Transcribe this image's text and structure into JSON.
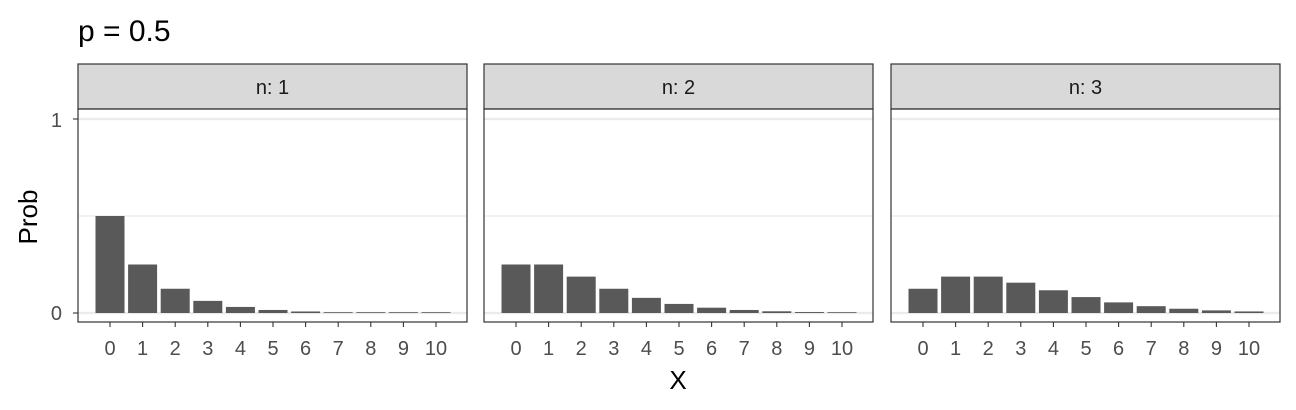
{
  "chart_data": {
    "type": "bar",
    "title": "p = 0.5",
    "xlabel": "X",
    "ylabel": "Prob",
    "ylim": [
      0,
      1
    ],
    "yticks": [
      "0",
      "1"
    ],
    "categories": [
      "0",
      "1",
      "2",
      "3",
      "4",
      "5",
      "6",
      "7",
      "8",
      "9",
      "10"
    ],
    "bar_color": "#595959",
    "strip_fill": "#d9d9d9",
    "grid": true,
    "panels": [
      {
        "label": "n: 1",
        "values": [
          0.5,
          0.25,
          0.125,
          0.0625,
          0.03125,
          0.015625,
          0.0078125,
          0.00390625,
          0.001953125,
          0.0009765625,
          0.00048828125
        ]
      },
      {
        "label": "n: 2",
        "values": [
          0.25,
          0.25,
          0.1875,
          0.125,
          0.078125,
          0.046875,
          0.02734375,
          0.015625,
          0.0087890625,
          0.0048828125,
          0.002685546875
        ]
      },
      {
        "label": "n: 3",
        "values": [
          0.125,
          0.1875,
          0.1875,
          0.15625,
          0.1171875,
          0.08203125,
          0.0546875,
          0.03515625,
          0.02197265625,
          0.013427734375,
          0.008056640625
        ]
      }
    ]
  }
}
